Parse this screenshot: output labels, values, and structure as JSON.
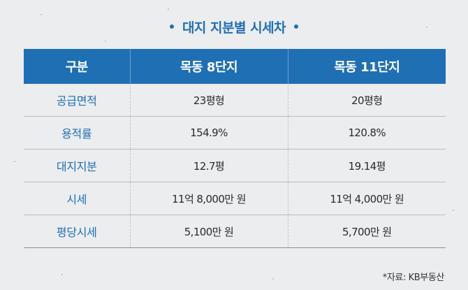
{
  "title": "대지 지분별 시세차",
  "colors": {
    "accent": "#1f6fb5",
    "background": "#ecedef"
  },
  "table": {
    "headers": [
      "구분",
      "목동 8단지",
      "목동 11단지"
    ],
    "rows": [
      {
        "label": "공급면적",
        "v1": "23평형",
        "v2": "20평형"
      },
      {
        "label": "용적률",
        "v1": "154.9%",
        "v2": "120.8%"
      },
      {
        "label": "대지지분",
        "v1": "12.7평",
        "v2": "19.14평"
      },
      {
        "label": "시세",
        "v1": "11억 8,000만 원",
        "v2": "11억 4,000만 원"
      },
      {
        "label": "평당시세",
        "v1": "5,100만 원",
        "v2": "5,700만 원"
      }
    ]
  },
  "source": "*자료: KB부동산"
}
